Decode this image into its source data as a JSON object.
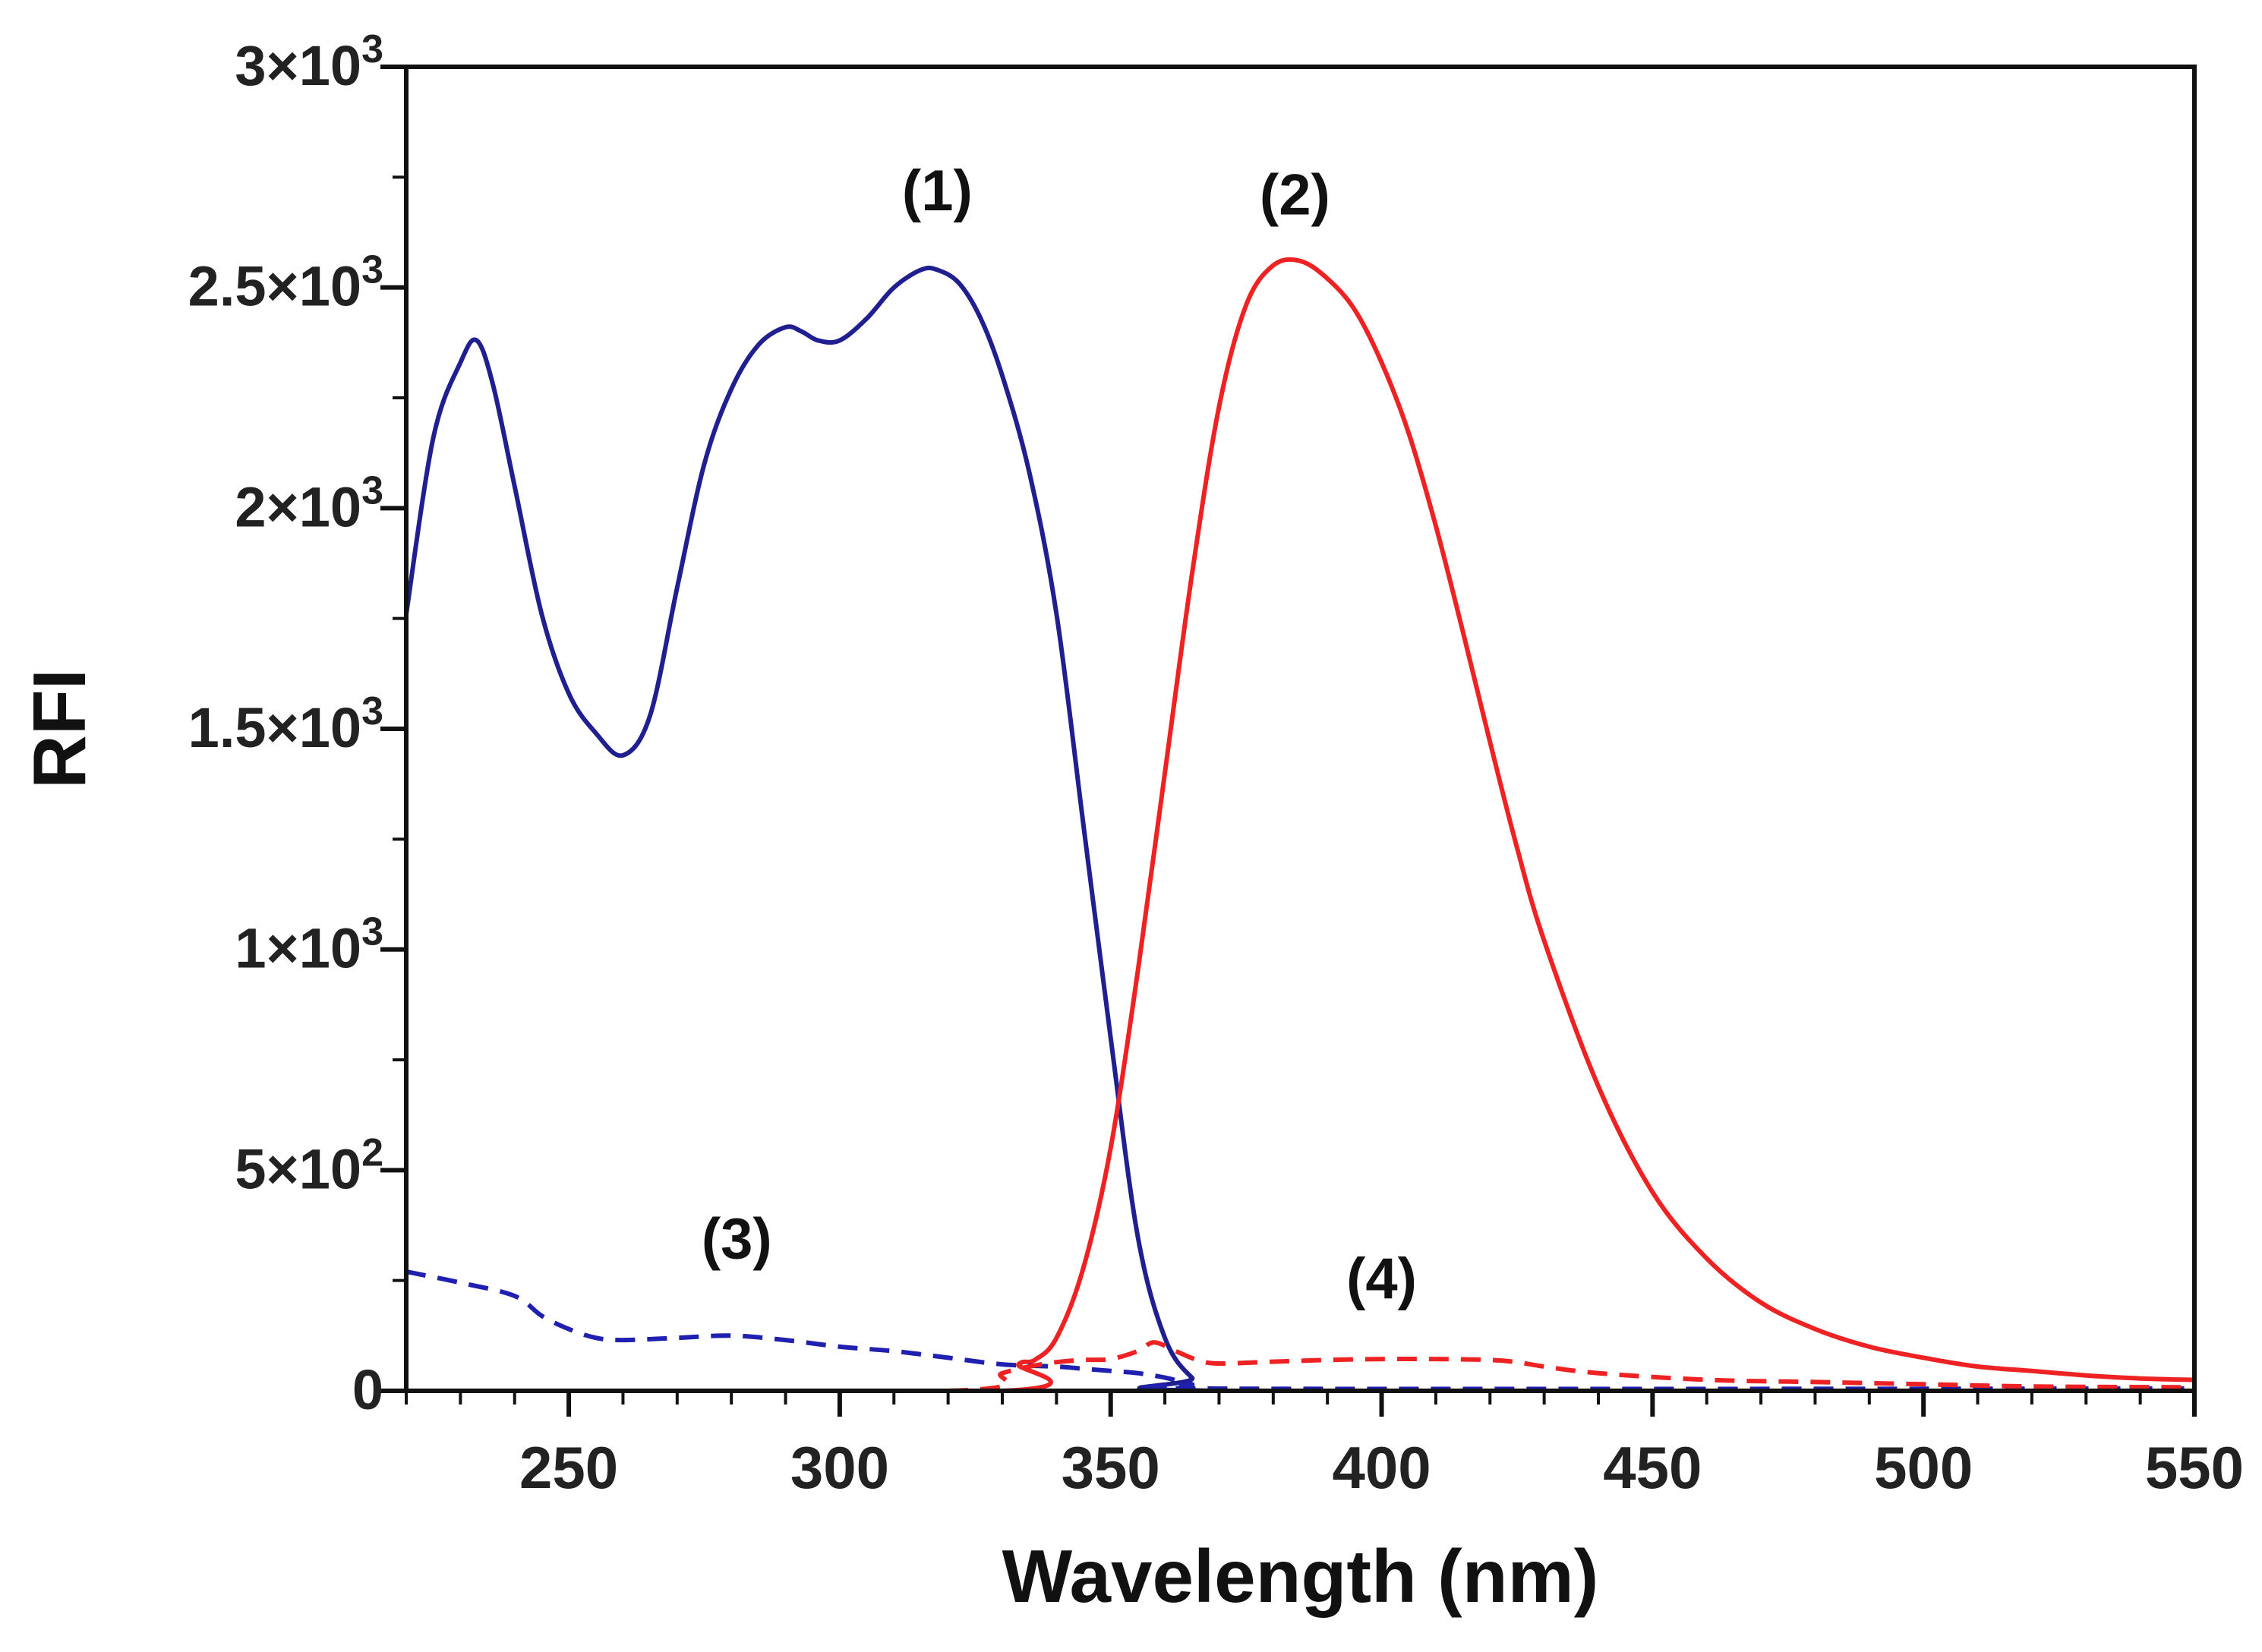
{
  "chart_data": {
    "type": "line",
    "title": "",
    "xlabel": "Wavelength (nm)",
    "ylabel": "RFI",
    "xlim": [
      220,
      550
    ],
    "ylim": [
      0,
      3000
    ],
    "grid": false,
    "x_ticks": [
      250,
      300,
      350,
      400,
      450,
      500,
      550
    ],
    "x_tick_labels": [
      "250",
      "300",
      "350",
      "400",
      "450",
      "500",
      "550"
    ],
    "y_ticks": [
      {
        "value": 0,
        "label": "0",
        "mant": "",
        "exp": ""
      },
      {
        "value": 500,
        "label": "5×10²",
        "mant": "5×10",
        "exp": "2"
      },
      {
        "value": 1000,
        "label": "1×10³",
        "mant": "1×10",
        "exp": "3"
      },
      {
        "value": 1500,
        "label": "1.5×10³",
        "mant": "1.5×10",
        "exp": "3"
      },
      {
        "value": 2000,
        "label": "2×10³",
        "mant": "2×10",
        "exp": "3"
      },
      {
        "value": 2500,
        "label": "2.5×10³",
        "mant": "2.5×10",
        "exp": "3"
      },
      {
        "value": 3000,
        "label": "3×10³",
        "mant": "3×10",
        "exp": "3"
      }
    ],
    "series": [
      {
        "name": "(1)",
        "color": "#1f1f8f",
        "dash": "solid",
        "x": [
          220,
          225,
          230,
          233,
          236,
          240,
          245,
          250,
          255,
          260,
          265,
          270,
          275,
          280,
          285,
          290,
          293,
          296,
          300,
          305,
          310,
          315,
          318,
          322,
          326,
          330,
          335,
          340,
          345,
          350,
          355,
          360,
          365,
          370,
          550
        ],
        "y": [
          1760,
          2160,
          2330,
          2380,
          2280,
          2050,
          1760,
          1580,
          1490,
          1440,
          1530,
          1820,
          2100,
          2270,
          2370,
          2410,
          2400,
          2380,
          2380,
          2430,
          2500,
          2540,
          2540,
          2510,
          2430,
          2300,
          2080,
          1760,
          1280,
          800,
          350,
          120,
          30,
          0,
          0
        ]
      },
      {
        "name": "(2)",
        "color": "#ee2222",
        "dash": "solid",
        "x": [
          220,
          330,
          333,
          336,
          340,
          345,
          350,
          355,
          360,
          365,
          370,
          375,
          380,
          385,
          390,
          395,
          400,
          405,
          410,
          415,
          420,
          425,
          430,
          440,
          450,
          460,
          470,
          480,
          490,
          500,
          510,
          520,
          530,
          540,
          550
        ],
        "y": [
          0,
          0,
          60,
          70,
          120,
          280,
          550,
          950,
          1400,
          1850,
          2230,
          2460,
          2550,
          2560,
          2520,
          2450,
          2330,
          2170,
          1960,
          1720,
          1470,
          1230,
          1020,
          690,
          450,
          300,
          200,
          140,
          100,
          75,
          55,
          45,
          35,
          28,
          25
        ]
      },
      {
        "name": "(3)",
        "color": "#1f1fb0",
        "dash": "dashed",
        "x": [
          220,
          230,
          240,
          245,
          250,
          255,
          260,
          270,
          280,
          290,
          300,
          310,
          320,
          330,
          340,
          345,
          350,
          355,
          360,
          365,
          370,
          550
        ],
        "y": [
          270,
          245,
          215,
          170,
          140,
          120,
          115,
          120,
          125,
          115,
          100,
          90,
          75,
          60,
          55,
          50,
          45,
          40,
          30,
          15,
          5,
          5
        ]
      },
      {
        "name": "(4)",
        "color": "#ee2222",
        "dash": "dashed",
        "x": [
          220,
          320,
          330,
          335,
          340,
          345,
          350,
          355,
          358,
          362,
          366,
          370,
          380,
          390,
          400,
          410,
          420,
          425,
          430,
          440,
          460,
          480,
          500,
          520,
          550
        ],
        "y": [
          0,
          0,
          40,
          55,
          65,
          70,
          72,
          90,
          110,
          90,
          70,
          62,
          66,
          70,
          72,
          72,
          70,
          65,
          55,
          40,
          25,
          20,
          15,
          10,
          8
        ]
      }
    ],
    "annotations": [
      {
        "text": "(1)",
        "x": 318,
        "y": 2675
      },
      {
        "text": "(2)",
        "x": 384,
        "y": 2665
      },
      {
        "text": "(3)",
        "x": 281,
        "y": 300
      },
      {
        "text": "(4)",
        "x": 400,
        "y": 210
      }
    ]
  }
}
